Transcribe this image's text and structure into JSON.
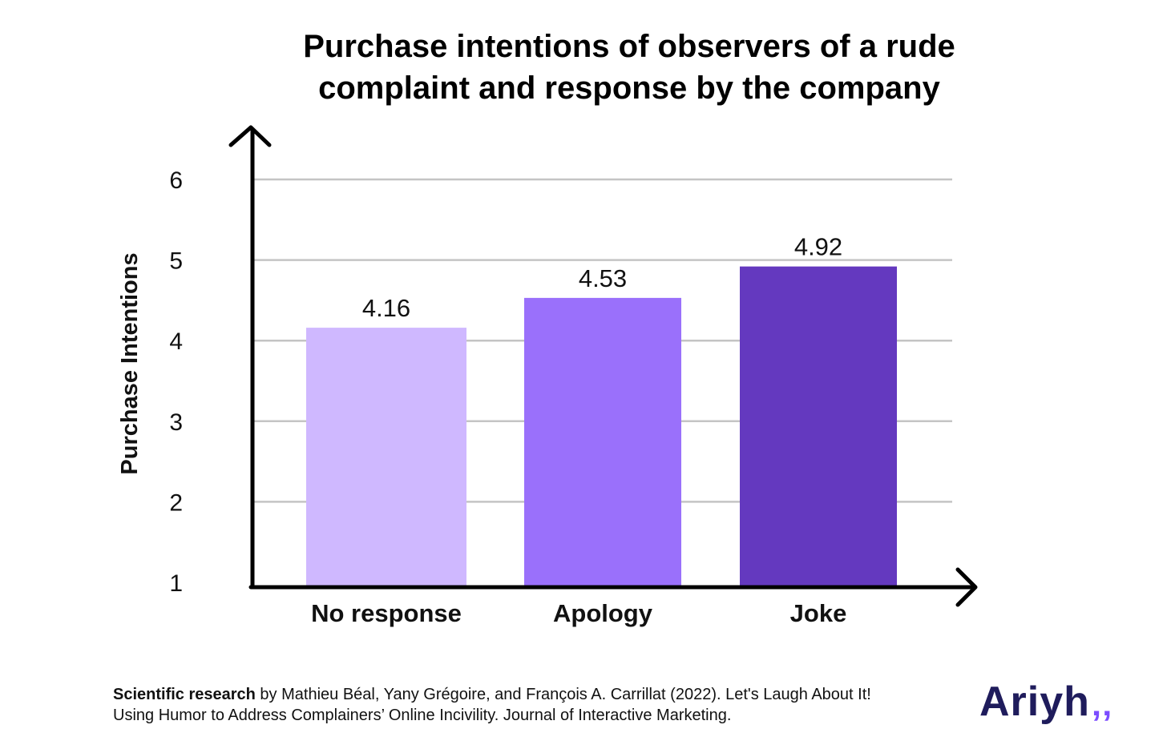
{
  "title_lines": [
    "Purchase intentions of observers of a rude",
    "complaint and response by the company"
  ],
  "chart_data": {
    "type": "bar",
    "title": "Purchase intentions of observers of a rude complaint and response by the company",
    "xlabel": "",
    "ylabel": "Purchase Intentions",
    "categories": [
      "No response",
      "Apology",
      "Joke"
    ],
    "values": [
      4.16,
      4.53,
      4.92
    ],
    "value_labels": [
      "4.16",
      "4.53",
      "4.92"
    ],
    "bar_colors": [
      "#cfb8ff",
      "#9a70fb",
      "#6439bf"
    ],
    "ylim": [
      1,
      6
    ],
    "yticks": [
      "1",
      "2",
      "3",
      "4",
      "5",
      "6"
    ],
    "grid": true,
    "grid_color": "#c4c4c4",
    "legend": "none"
  },
  "footer": {
    "bold_lead": "Scientific research",
    "line1_rest": " by Mathieu Béal, Yany Grégoire, and François A. Carrillat (2022). Let's Laugh About It!",
    "line2": "Using Humor to Address Complainers’ Online Incivility. Journal of Interactive Marketing."
  },
  "logo": {
    "text": "Ariyh",
    "mark": "‚‚",
    "text_color": "#1f1c5c",
    "mark_color": "#7c4dff"
  }
}
